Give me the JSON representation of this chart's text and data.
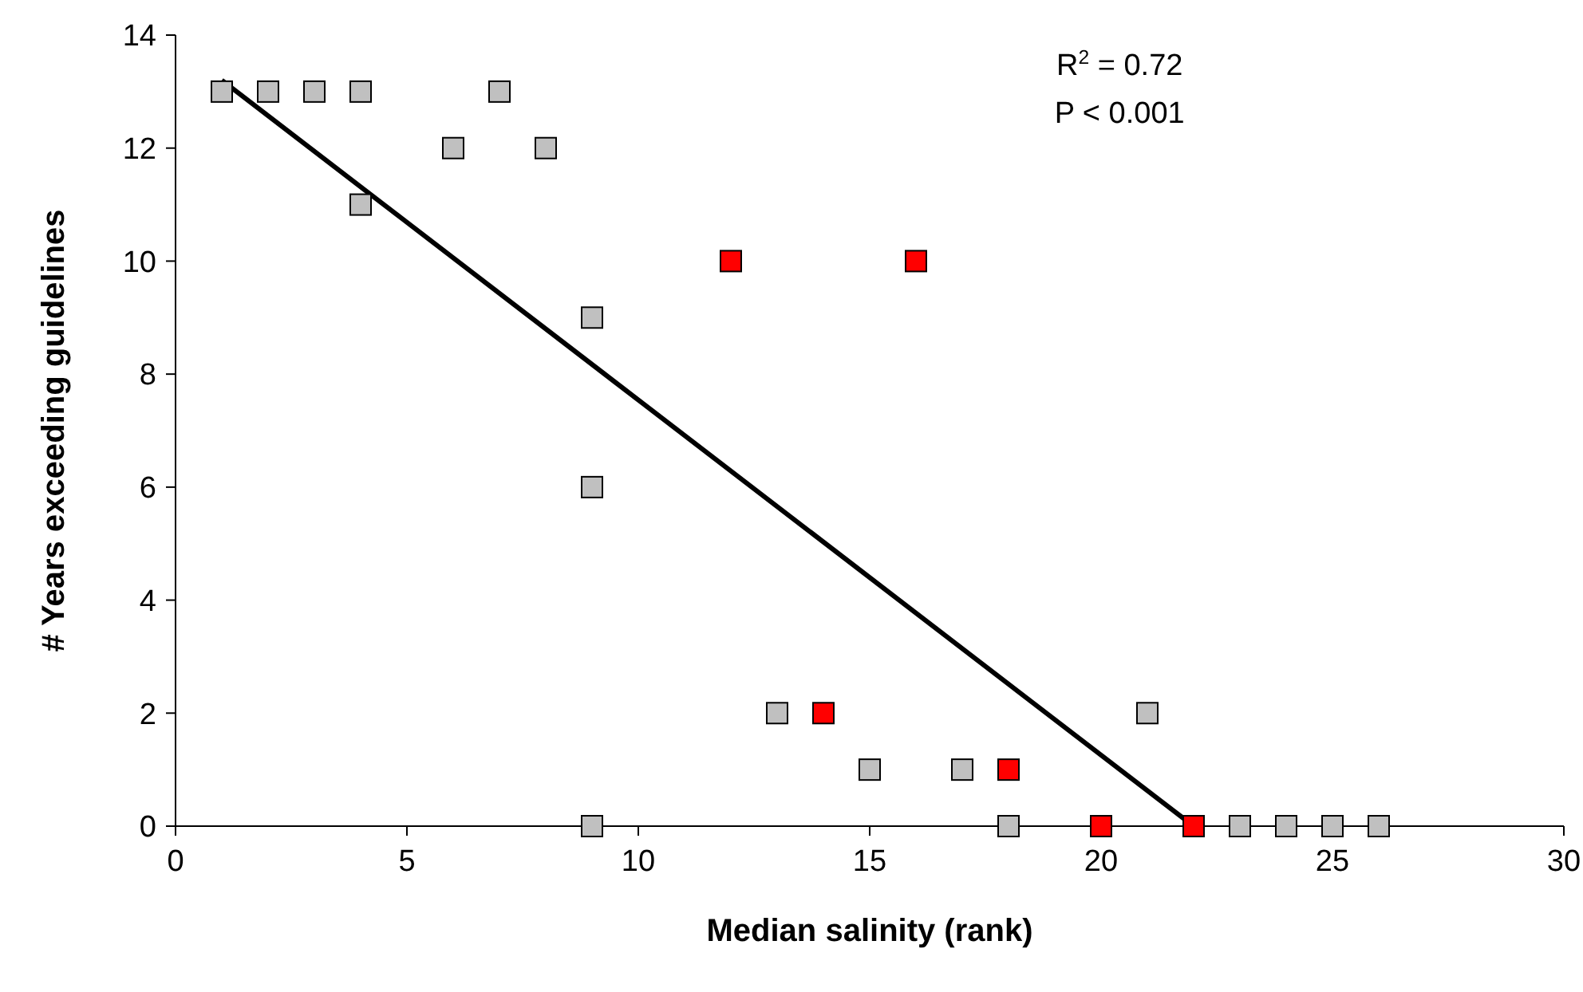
{
  "chart_data": {
    "type": "scatter",
    "xlabel": "Median salinity (rank)",
    "ylabel": "# Years exceeding guidelines",
    "xlim": [
      0,
      30
    ],
    "xticks": [
      0,
      5,
      10,
      15,
      20,
      25,
      30
    ],
    "ylim": [
      0,
      14
    ],
    "yticks": [
      0,
      2,
      4,
      6,
      8,
      10,
      12,
      14
    ],
    "grid": false,
    "marker": "square",
    "annotations": [
      "R$^{2}$ = 0.72",
      "P < 0.001"
    ],
    "series": [
      {
        "color": "#c0c0c0",
        "x": [
          1,
          2,
          3,
          4,
          7,
          6,
          8,
          4,
          9,
          9,
          9,
          13,
          15,
          17,
          18,
          21,
          23,
          24,
          25,
          26
        ],
        "values": [
          13,
          13,
          13,
          13,
          13,
          12,
          12,
          11,
          9,
          6,
          0,
          2,
          1,
          1,
          0,
          2,
          0,
          0,
          0,
          0
        ]
      },
      {
        "color": "#ff0000",
        "x": [
          12,
          16,
          14,
          18,
          20,
          22
        ],
        "values": [
          10,
          10,
          2,
          1,
          0,
          0
        ]
      },
      {
        "type": "line",
        "color": "#000000",
        "marker": "none",
        "x": [
          1,
          22
        ],
        "values": [
          13.2,
          0
        ]
      }
    ]
  }
}
